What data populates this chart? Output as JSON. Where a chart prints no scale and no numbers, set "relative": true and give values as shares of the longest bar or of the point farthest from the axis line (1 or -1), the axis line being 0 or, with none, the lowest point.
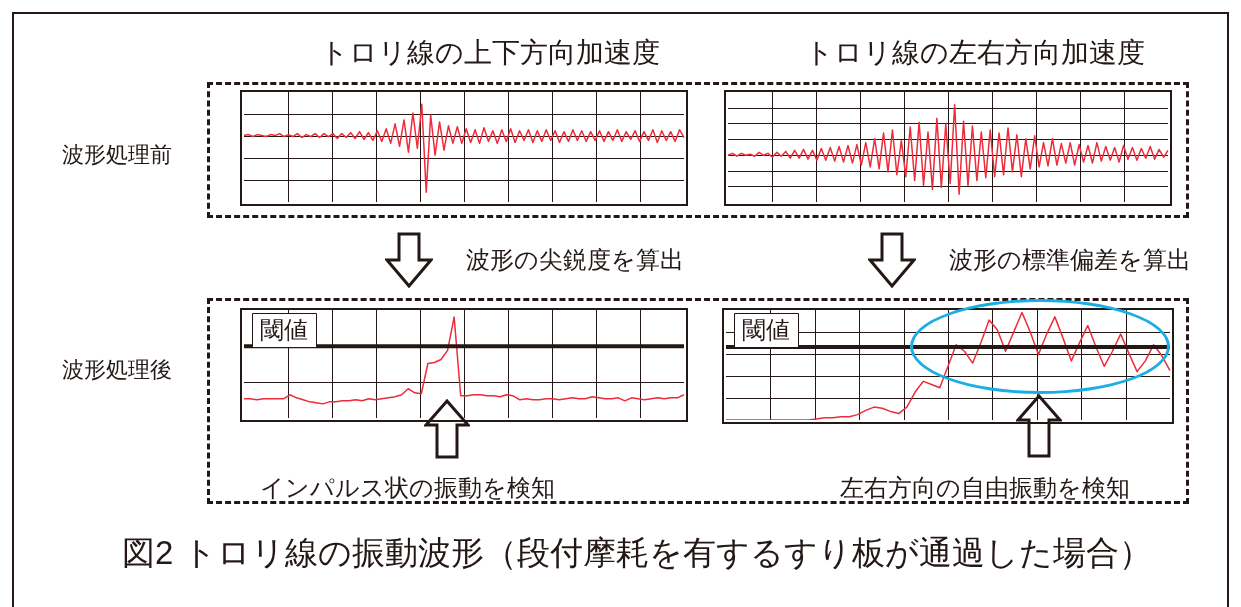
{
  "chart_data": [
    {
      "type": "line",
      "title": "トロリ線の上下方向加速度",
      "relative": true,
      "grid": true,
      "tick_labels": false,
      "color": "#ee2b3b",
      "annotations": [
        "波形処理前",
        "図2  トロリ線の振動波形（段付摩耗を有するすり板が通過した場合）"
      ],
      "categories": [
        null,
        null,
        null,
        null,
        null,
        null,
        null,
        null,
        null,
        null,
        null,
        null,
        null,
        null,
        null,
        null,
        null,
        null,
        null,
        null,
        null,
        null,
        null,
        null,
        null,
        null,
        null,
        null,
        null,
        null,
        null,
        null,
        null,
        null,
        null,
        null,
        null,
        null,
        null,
        null,
        null,
        null,
        null,
        null,
        null,
        null,
        null,
        null,
        null,
        null,
        null,
        null,
        null,
        null,
        null,
        null,
        null,
        null,
        null,
        null,
        null,
        null,
        null,
        null,
        null,
        null,
        null,
        null,
        null,
        null,
        null,
        null,
        null,
        null,
        null,
        null,
        null,
        null,
        null,
        null,
        null,
        null,
        null,
        null,
        null,
        null,
        null,
        null,
        null,
        null,
        null,
        null,
        null,
        null,
        null,
        null,
        null,
        null,
        null,
        null
      ],
      "values": [
        0.68,
        0.69,
        0.67,
        0.69,
        0.68,
        0.67,
        0.69,
        0.68,
        0.7,
        0.67,
        0.69,
        0.67,
        0.7,
        0.66,
        0.69,
        0.67,
        0.7,
        0.66,
        0.7,
        0.67,
        0.7,
        0.65,
        0.7,
        0.66,
        0.71,
        0.65,
        0.72,
        0.64,
        0.71,
        0.63,
        0.73,
        0.62,
        0.75,
        0.6,
        0.8,
        0.57,
        0.84,
        0.51,
        0.91,
        0.55,
        1.0,
        0.1,
        0.89,
        0.48,
        0.82,
        0.53,
        0.78,
        0.6,
        0.77,
        0.6,
        0.75,
        0.61,
        0.74,
        0.6,
        0.76,
        0.62,
        0.73,
        0.6,
        0.74,
        0.62,
        0.75,
        0.61,
        0.73,
        0.63,
        0.74,
        0.61,
        0.73,
        0.62,
        0.74,
        0.63,
        0.73,
        0.61,
        0.72,
        0.62,
        0.74,
        0.63,
        0.73,
        0.62,
        0.72,
        0.63,
        0.73,
        0.62,
        0.72,
        0.63,
        0.74,
        0.62,
        0.72,
        0.64,
        0.73,
        0.62,
        0.72,
        0.63,
        0.74,
        0.61,
        0.73,
        0.63,
        0.72,
        0.62,
        0.74,
        0.66
      ]
    },
    {
      "type": "line",
      "title": "トロリ線の左右方向加速度",
      "relative": true,
      "grid": true,
      "tick_labels": false,
      "color": "#ee2b3b",
      "categories": [
        null,
        null,
        null,
        null,
        null,
        null,
        null,
        null,
        null,
        null,
        null,
        null,
        null,
        null,
        null,
        null,
        null,
        null,
        null,
        null,
        null,
        null,
        null,
        null,
        null,
        null,
        null,
        null,
        null,
        null,
        null,
        null,
        null,
        null,
        null,
        null,
        null,
        null,
        null,
        null,
        null,
        null,
        null,
        null,
        null,
        null,
        null,
        null,
        null,
        null,
        null,
        null,
        null,
        null,
        null,
        null,
        null,
        null,
        null,
        null,
        null,
        null,
        null,
        null,
        null,
        null,
        null,
        null,
        null,
        null,
        null,
        null,
        null,
        null,
        null,
        null,
        null,
        null,
        null,
        null,
        null,
        null,
        null,
        null,
        null,
        null,
        null,
        null,
        null,
        null,
        null,
        null,
        null,
        null,
        null,
        null,
        null,
        null,
        null,
        null
      ],
      "values": [
        0.48,
        0.5,
        0.47,
        0.5,
        0.48,
        0.49,
        0.47,
        0.51,
        0.48,
        0.5,
        0.46,
        0.51,
        0.47,
        0.52,
        0.45,
        0.53,
        0.45,
        0.54,
        0.44,
        0.53,
        0.43,
        0.55,
        0.43,
        0.56,
        0.42,
        0.57,
        0.41,
        0.58,
        0.4,
        0.59,
        0.38,
        0.61,
        0.36,
        0.65,
        0.34,
        0.71,
        0.31,
        0.74,
        0.28,
        0.63,
        0.26,
        0.77,
        0.22,
        0.82,
        0.17,
        0.72,
        0.13,
        0.86,
        0.15,
        0.8,
        0.19,
        1.0,
        0.08,
        0.83,
        0.17,
        0.78,
        0.22,
        0.72,
        0.25,
        0.74,
        0.26,
        0.71,
        0.28,
        0.76,
        0.31,
        0.69,
        0.26,
        0.65,
        0.34,
        0.68,
        0.36,
        0.61,
        0.37,
        0.65,
        0.38,
        0.6,
        0.4,
        0.61,
        0.38,
        0.59,
        0.41,
        0.58,
        0.4,
        0.61,
        0.42,
        0.57,
        0.43,
        0.56,
        0.41,
        0.58,
        0.44,
        0.56,
        0.43,
        0.55,
        0.45,
        0.57,
        0.44,
        0.54,
        0.46,
        0.53
      ]
    },
    {
      "type": "line",
      "relative": true,
      "grid": true,
      "tick_labels": false,
      "color": "#ee2b3b",
      "annotations": [
        "波形の尖鋭度を算出",
        "波形処理後",
        "インパルス状の振動を検知"
      ],
      "ref_lines": [
        {
          "axis": "y",
          "value": 0.71,
          "label": "閾値",
          "color": "#231815"
        }
      ],
      "categories": [
        null,
        null,
        null,
        null,
        null,
        null,
        null,
        null,
        null,
        null,
        null,
        null,
        null,
        null,
        null,
        null,
        null,
        null,
        null,
        null,
        null,
        null,
        null,
        null,
        null,
        null,
        null,
        null,
        null,
        null,
        null,
        null,
        null,
        null,
        null,
        null,
        null,
        null,
        null,
        null,
        null,
        null,
        null,
        null,
        null,
        null,
        null,
        null,
        null,
        null,
        null,
        null,
        null,
        null,
        null,
        null,
        null,
        null,
        null,
        null,
        null,
        null,
        null,
        null,
        null,
        null,
        null,
        null
      ],
      "values": [
        0.19,
        0.19,
        0.18,
        0.19,
        0.19,
        0.19,
        0.19,
        0.23,
        0.2,
        0.18,
        0.16,
        0.15,
        0.14,
        0.16,
        0.16,
        0.17,
        0.17,
        0.18,
        0.17,
        0.19,
        0.18,
        0.19,
        0.2,
        0.21,
        0.23,
        0.29,
        0.25,
        0.24,
        0.54,
        0.55,
        0.58,
        0.67,
        1.0,
        0.22,
        0.22,
        0.23,
        0.23,
        0.22,
        0.22,
        0.21,
        0.23,
        0.22,
        0.18,
        0.19,
        0.18,
        0.18,
        0.19,
        0.19,
        0.18,
        0.19,
        0.2,
        0.19,
        0.19,
        0.21,
        0.2,
        0.19,
        0.19,
        0.2,
        0.17,
        0.2,
        0.19,
        0.18,
        0.19,
        0.2,
        0.19,
        0.2,
        0.2,
        0.23
      ]
    },
    {
      "type": "line",
      "relative": true,
      "grid": true,
      "tick_labels": false,
      "color": "#ee2b3b",
      "annotations": [
        "波形の標準偏差を算出",
        "左右方向の自由振動を検知"
      ],
      "ref_lines": [
        {
          "axis": "y",
          "value": 0.68,
          "label": "閾値",
          "color": "#231815"
        }
      ],
      "categories": [
        null,
        null,
        null,
        null,
        null,
        null,
        null,
        null,
        null,
        null,
        null,
        null,
        null,
        null,
        null,
        null,
        null,
        null,
        null,
        null,
        null,
        null,
        null,
        null,
        null,
        null,
        null,
        null,
        null,
        null,
        null,
        null,
        null,
        null,
        null,
        null,
        null,
        null,
        null,
        null,
        null,
        null,
        null,
        null,
        null,
        null,
        null,
        null,
        null,
        null,
        null,
        null,
        null,
        null,
        null
      ],
      "values": [
        0.0,
        0.0,
        0.0,
        0.0,
        0.0,
        0.0,
        0.0,
        0.0,
        0.0,
        0.0,
        0.0,
        0.01,
        0.02,
        0.02,
        0.03,
        0.03,
        0.05,
        0.09,
        0.12,
        0.11,
        0.08,
        0.06,
        0.12,
        0.26,
        0.36,
        0.33,
        0.3,
        0.5,
        0.7,
        0.64,
        0.53,
        0.72,
        0.93,
        0.84,
        0.64,
        0.82,
        1.0,
        0.82,
        0.61,
        0.8,
        0.96,
        0.76,
        0.55,
        0.72,
        0.88,
        0.68,
        0.5,
        0.64,
        0.8,
        0.62,
        0.45,
        0.55,
        0.7,
        0.6,
        0.46
      ]
    }
  ]
}
